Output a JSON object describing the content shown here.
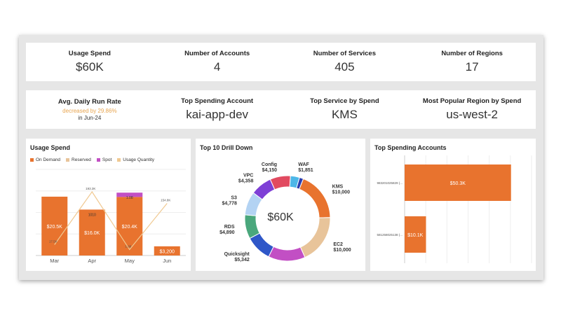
{
  "kpi_row1": [
    {
      "label": "Usage Spend",
      "value": "$60K"
    },
    {
      "label": "Number of Accounts",
      "value": "4"
    },
    {
      "label": "Number of Services",
      "value": "405"
    },
    {
      "label": "Number of Regions",
      "value": "17"
    }
  ],
  "kpi_row2": {
    "run_rate": {
      "label": "Avg. Daily Run Rate",
      "change": "decreased by 29.86%",
      "period": "in Jun-24"
    },
    "top_account": {
      "label": "Top Spending Account",
      "value": "kai-app-dev"
    },
    "top_service": {
      "label": "Top Service by Spend",
      "value": "KMS"
    },
    "top_region": {
      "label": "Most Popular Region by Spend",
      "value": "us-west-2"
    }
  },
  "usage_panel": {
    "title": "Usage Spend"
  },
  "drill_panel": {
    "title": "Top 10 Drill Down",
    "center_value": "$60K"
  },
  "accounts_panel": {
    "title": "Top Spending Accounts"
  },
  "colors": {
    "on_demand": "#e8732e",
    "reserved": "#e8c49a",
    "spot": "#c24fc4",
    "usage_quantity": "#f0c992"
  },
  "chart_data": [
    {
      "type": "bar",
      "title": "Usage Spend",
      "legend": [
        "On Demand",
        "Reserved",
        "Spot",
        "Usage Quantity"
      ],
      "legend_position": "top-left",
      "categories": [
        "Mar",
        "Apr",
        "May",
        "Jun"
      ],
      "series": [
        {
          "name": "On Demand",
          "values": [
            20500,
            16000,
            20400,
            3200
          ]
        },
        {
          "name": "Reserved",
          "values": [
            0,
            0,
            0,
            0
          ]
        },
        {
          "name": "Spot",
          "values": [
            0,
            0,
            1500,
            0
          ]
        }
      ],
      "bar_labels": [
        "$20.5K",
        "$16.0K",
        "$20.4K",
        "$3,200"
      ],
      "line": {
        "name": "Usage Quantity",
        "values": [
          17.5,
          193.3,
          1.08,
          154.8
        ],
        "labels": [
          "17.5K",
          "193.3K",
          "1.08",
          "154.8K"
        ]
      },
      "top_labels": [
        "",
        "1010",
        "1.08",
        ""
      ],
      "ylim": [
        0,
        30000
      ],
      "grid": true
    },
    {
      "type": "pie",
      "title": "Top 10 Drill Down",
      "center_label": "$60K",
      "slices": [
        {
          "label": "KMS",
          "value": 10000,
          "value_label": "$10,000",
          "color": "#e8732e"
        },
        {
          "label": "EC2",
          "value": 10000,
          "value_label": "$10,000",
          "color": "#e8c49a"
        },
        {
          "label": "",
          "value": 7500,
          "value_label": "",
          "color": "#c24fc4"
        },
        {
          "label": "Quicksight",
          "value": 5342,
          "value_label": "$5,342",
          "color": "#2f57c8"
        },
        {
          "label": "RDS",
          "value": 4890,
          "value_label": "$4,890",
          "color": "#4aa77c"
        },
        {
          "label": "S3",
          "value": 4778,
          "value_label": "$4,778",
          "color": "#b3d3f3"
        },
        {
          "label": "VPC",
          "value": 4358,
          "value_label": "$4,358",
          "color": "#7e3fd6"
        },
        {
          "label": "Config",
          "value": 4150,
          "value_label": "$4,150",
          "color": "#e14a60"
        },
        {
          "label": "WAF",
          "value": 1851,
          "value_label": "$1,851",
          "color": "#4db7e8"
        },
        {
          "label": "",
          "value": 800,
          "value_label": "",
          "color": "#2b3fb0"
        }
      ]
    },
    {
      "type": "bar",
      "orientation": "horizontal",
      "title": "Top Spending Accounts",
      "categories": [
        "983201025829 (...",
        "581258025138 (..."
      ],
      "values": [
        50300,
        10100
      ],
      "value_labels": [
        "$50.3K",
        "$10.1K"
      ],
      "xlim": [
        0,
        60000
      ],
      "grid": true
    }
  ]
}
